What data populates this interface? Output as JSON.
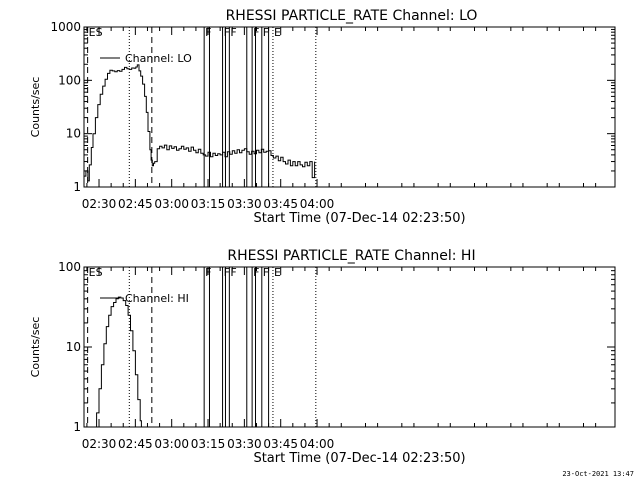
{
  "footer": "23-Oct-2021 13:47",
  "chart_data": [
    {
      "type": "line",
      "title": "RHESSI PARTICLE_RATE Channel: LO",
      "ylabel": "Counts/sec",
      "xlabel": "Start Time (07-Dec-14 02:23:50)",
      "yscale": "log",
      "ylim": [
        1,
        1000
      ],
      "xlim_min": [
        23.8,
        243
      ],
      "ytick_values": [
        1,
        10,
        100,
        1000
      ],
      "ytick_labels": [
        "1",
        "10",
        "100",
        "1000"
      ],
      "xtick_values": [
        30,
        45,
        60,
        75,
        90,
        105,
        120
      ],
      "xtick_labels": [
        "02:30",
        "02:45",
        "03:00",
        "03:15",
        "03:30",
        "03:45",
        "04:00"
      ],
      "legend": {
        "label": "Channel: LO",
        "position": "top-left"
      },
      "markers": [
        {
          "x": 25.3,
          "label": "ES",
          "style": "dashed"
        },
        {
          "x": 42.5,
          "label": "",
          "style": "dotted"
        },
        {
          "x": 51.8,
          "label": "",
          "style": "dashed"
        },
        {
          "x": 73.4,
          "label": "F",
          "style": "solid"
        },
        {
          "x": 75.6,
          "label": "",
          "style": "solid"
        },
        {
          "x": 81.0,
          "label": "F",
          "style": "solid"
        },
        {
          "x": 82.2,
          "label": "",
          "style": "solid"
        },
        {
          "x": 83.8,
          "label": "F",
          "style": "solid"
        },
        {
          "x": 91.0,
          "label": "",
          "style": "solid"
        },
        {
          "x": 93.2,
          "label": "F",
          "style": "solid"
        },
        {
          "x": 94.6,
          "label": "",
          "style": "solid"
        },
        {
          "x": 97.2,
          "label": "F",
          "style": "solid"
        },
        {
          "x": 100.0,
          "label": "",
          "style": "solid"
        },
        {
          "x": 101.8,
          "label": "E",
          "style": "dotted"
        },
        {
          "x": 119.5,
          "label": "",
          "style": "dotted"
        }
      ],
      "series": [
        {
          "name": "Channel: LO",
          "x": [
            24,
            24.6,
            25.4,
            26,
            26.8,
            27.5,
            28.5,
            29.5,
            30.5,
            31.5,
            32.5,
            33.5,
            34.5,
            35.5,
            36.5,
            37.5,
            38.5,
            39.5,
            40.5,
            41.5,
            42.5,
            43.5,
            44.5,
            45.2,
            45.8,
            46.5,
            47.2,
            48,
            48.8,
            49.5,
            50.2,
            51,
            51.5,
            52,
            52.5,
            53,
            54,
            55,
            56,
            57,
            58,
            59,
            60,
            61,
            62,
            63,
            64,
            65,
            66,
            67,
            68,
            69,
            70,
            71,
            72,
            73,
            74,
            75,
            76,
            77,
            78,
            79,
            80,
            81,
            82,
            83,
            84,
            85,
            86,
            87,
            88,
            89,
            90,
            91,
            92,
            93,
            94,
            95,
            96,
            97,
            98,
            99,
            100,
            101,
            102,
            103,
            104,
            105,
            106,
            107,
            108,
            109,
            110,
            111,
            112,
            113,
            114,
            115,
            116,
            117,
            118,
            119
          ],
          "values": [
            1.6,
            2.0,
            1.3,
            2.6,
            5.5,
            10,
            20,
            35,
            55,
            78,
            105,
            135,
            155,
            150,
            145,
            152,
            148,
            160,
            175,
            165,
            160,
            170,
            168,
            178,
            195,
            150,
            120,
            85,
            50,
            25,
            11,
            5,
            3.2,
            2.5,
            2.8,
            3.0,
            5.2,
            5.8,
            5.4,
            6.1,
            5.0,
            5.9,
            5.3,
            5.7,
            4.9,
            5.2,
            5.8,
            5.1,
            5.4,
            4.7,
            5.6,
            4.9,
            4.4,
            5.1,
            4.3,
            4.0,
            3.8,
            4.5,
            3.7,
            4.3,
            3.9,
            4.2,
            4.0,
            4.5,
            3.7,
            4.6,
            4.1,
            4.8,
            4.3,
            5.0,
            4.4,
            4.9,
            5.2,
            4.6,
            4.1,
            4.7,
            4.2,
            4.9,
            4.4,
            5.1,
            4.5,
            4.7,
            4.8,
            3.9,
            3.5,
            3.8,
            3.1,
            3.6,
            3.0,
            2.7,
            3.2,
            2.5,
            3.0,
            2.5,
            3.0,
            2.6,
            2.4,
            2.9,
            2.5,
            3.0,
            1.5,
            3.0
          ]
        }
      ]
    },
    {
      "type": "line",
      "title": "RHESSI PARTICLE_RATE Channel: HI",
      "ylabel": "Counts/sec",
      "xlabel": "Start Time (07-Dec-14 02:23:50)",
      "yscale": "log",
      "ylim": [
        1,
        100
      ],
      "xlim_min": [
        23.8,
        243
      ],
      "ytick_values": [
        1,
        10,
        100
      ],
      "ytick_labels": [
        "1",
        "10",
        "100"
      ],
      "xtick_values": [
        30,
        45,
        60,
        75,
        90,
        105,
        120
      ],
      "xtick_labels": [
        "02:30",
        "02:45",
        "03:00",
        "03:15",
        "03:30",
        "03:45",
        "04:00"
      ],
      "legend": {
        "label": "Channel: HI",
        "position": "top-left"
      },
      "markers": [
        {
          "x": 25.3,
          "label": "ES",
          "style": "dashed"
        },
        {
          "x": 42.5,
          "label": "",
          "style": "dotted"
        },
        {
          "x": 51.8,
          "label": "",
          "style": "dashed"
        },
        {
          "x": 73.4,
          "label": "F",
          "style": "solid"
        },
        {
          "x": 75.6,
          "label": "",
          "style": "solid"
        },
        {
          "x": 81.0,
          "label": "F",
          "style": "solid"
        },
        {
          "x": 82.2,
          "label": "",
          "style": "solid"
        },
        {
          "x": 83.8,
          "label": "F",
          "style": "solid"
        },
        {
          "x": 91.0,
          "label": "",
          "style": "solid"
        },
        {
          "x": 93.2,
          "label": "F",
          "style": "solid"
        },
        {
          "x": 94.6,
          "label": "",
          "style": "solid"
        },
        {
          "x": 97.2,
          "label": "F",
          "style": "solid"
        },
        {
          "x": 100.0,
          "label": "",
          "style": "solid"
        },
        {
          "x": 101.8,
          "label": "E",
          "style": "dotted"
        },
        {
          "x": 119.5,
          "label": "",
          "style": "dotted"
        }
      ],
      "series": [
        {
          "name": "Channel: HI",
          "x": [
            28,
            29,
            30,
            31,
            32,
            33,
            34,
            35,
            36,
            37,
            38,
            39,
            40,
            41,
            42,
            43,
            44,
            45,
            46,
            47,
            47.5
          ],
          "values": [
            1.0,
            1.5,
            3,
            6,
            11,
            18,
            25,
            32,
            36,
            40,
            42,
            41,
            38,
            33,
            25,
            16,
            9,
            4.5,
            2.2,
            1.2,
            1.0
          ]
        }
      ]
    }
  ]
}
